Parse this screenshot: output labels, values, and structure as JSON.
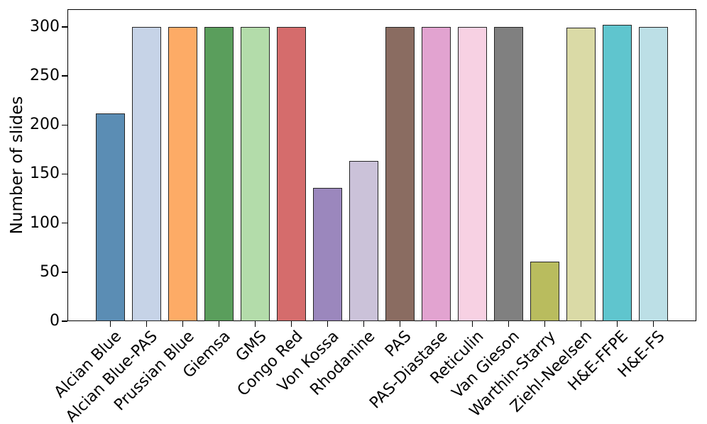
{
  "chart_data": {
    "type": "bar",
    "title": "",
    "xlabel": "",
    "ylabel": "Number of slides",
    "categories": [
      "Alcian Blue",
      "Alcian Blue-PAS",
      "Prussian Blue",
      "Giemsa",
      "GMS",
      "Congo Red",
      "Von Kossa",
      "Rhodanine",
      "PAS",
      "PAS-Diastase",
      "Reticulin",
      "Van Gieson",
      "Warthin-Starry",
      "Ziehl-Neelsen",
      "H&E-FFPE",
      "H&E-FS"
    ],
    "values": [
      212,
      300,
      300,
      300,
      300,
      300,
      136,
      163,
      300,
      300,
      300,
      300,
      61,
      299,
      302,
      300
    ],
    "bar_colors": [
      "#5b8db4",
      "#c6d3e7",
      "#fdab66",
      "#5a9e5c",
      "#b3dcaa",
      "#d56c6c",
      "#9b87bd",
      "#cbc2d9",
      "#8a6c61",
      "#e2a3d0",
      "#f7d1e3",
      "#808080",
      "#b9bc5e",
      "#dadaa6",
      "#5fc5ce",
      "#bcdfe6"
    ],
    "bar_edge_color": "#262626",
    "yticks": [
      0,
      50,
      100,
      150,
      200,
      250,
      300
    ],
    "ylim": [
      0,
      318
    ],
    "xtick_rotation_deg": 45,
    "grid": false,
    "legend": "none",
    "background": "#ffffff"
  }
}
